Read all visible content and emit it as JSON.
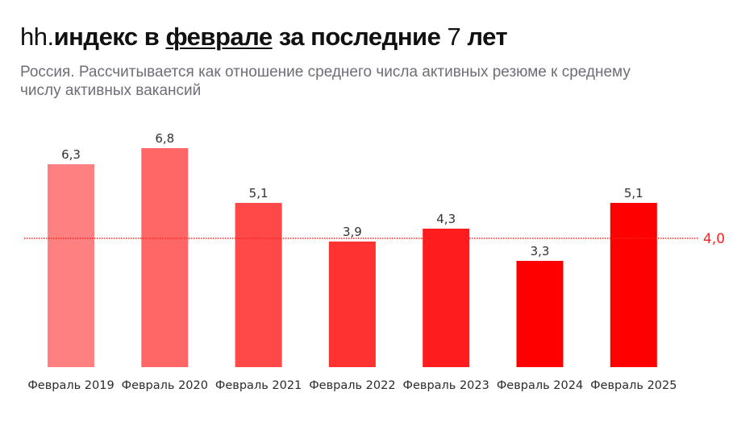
{
  "header": {
    "title_prefix": "hh.",
    "title_part1": "индекс в ",
    "title_underlined": "феврале",
    "title_part2": " за последние ",
    "title_number": "7",
    "title_part3": " лет",
    "subtitle": "Россия. Рассчитывается как отношение среднего числа активных резюме к среднему числу активных вакансий"
  },
  "chart_data": {
    "type": "bar",
    "title": "hh.индекс в феврале за последние 7 лет",
    "subtitle": "Россия. Рассчитывается как отношение среднего числа активных резюме к среднему числу активных вакансий",
    "xlabel": "",
    "ylabel": "",
    "ylim": [
      0,
      7
    ],
    "grid": false,
    "categories": [
      "Февраль 2019",
      "Февраль 2020",
      "Февраль 2021",
      "Февраль 2022",
      "Февраль 2023",
      "Февраль 2024",
      "Февраль 2025"
    ],
    "values": [
      6.3,
      6.8,
      5.1,
      3.9,
      4.3,
      3.3,
      5.1
    ],
    "value_labels": [
      "6,3",
      "6,8",
      "5,1",
      "3,9",
      "4,3",
      "3,3",
      "5,1"
    ],
    "bar_colors": [
      "#ff8080",
      "#ff6666",
      "#ff4848",
      "#ff3232",
      "#ff1c1f",
      "#ff0000",
      "#ff0000"
    ],
    "reference_line": {
      "value": 4.0,
      "label": "4,0",
      "style": "dotted",
      "color": "#ff2020"
    }
  }
}
